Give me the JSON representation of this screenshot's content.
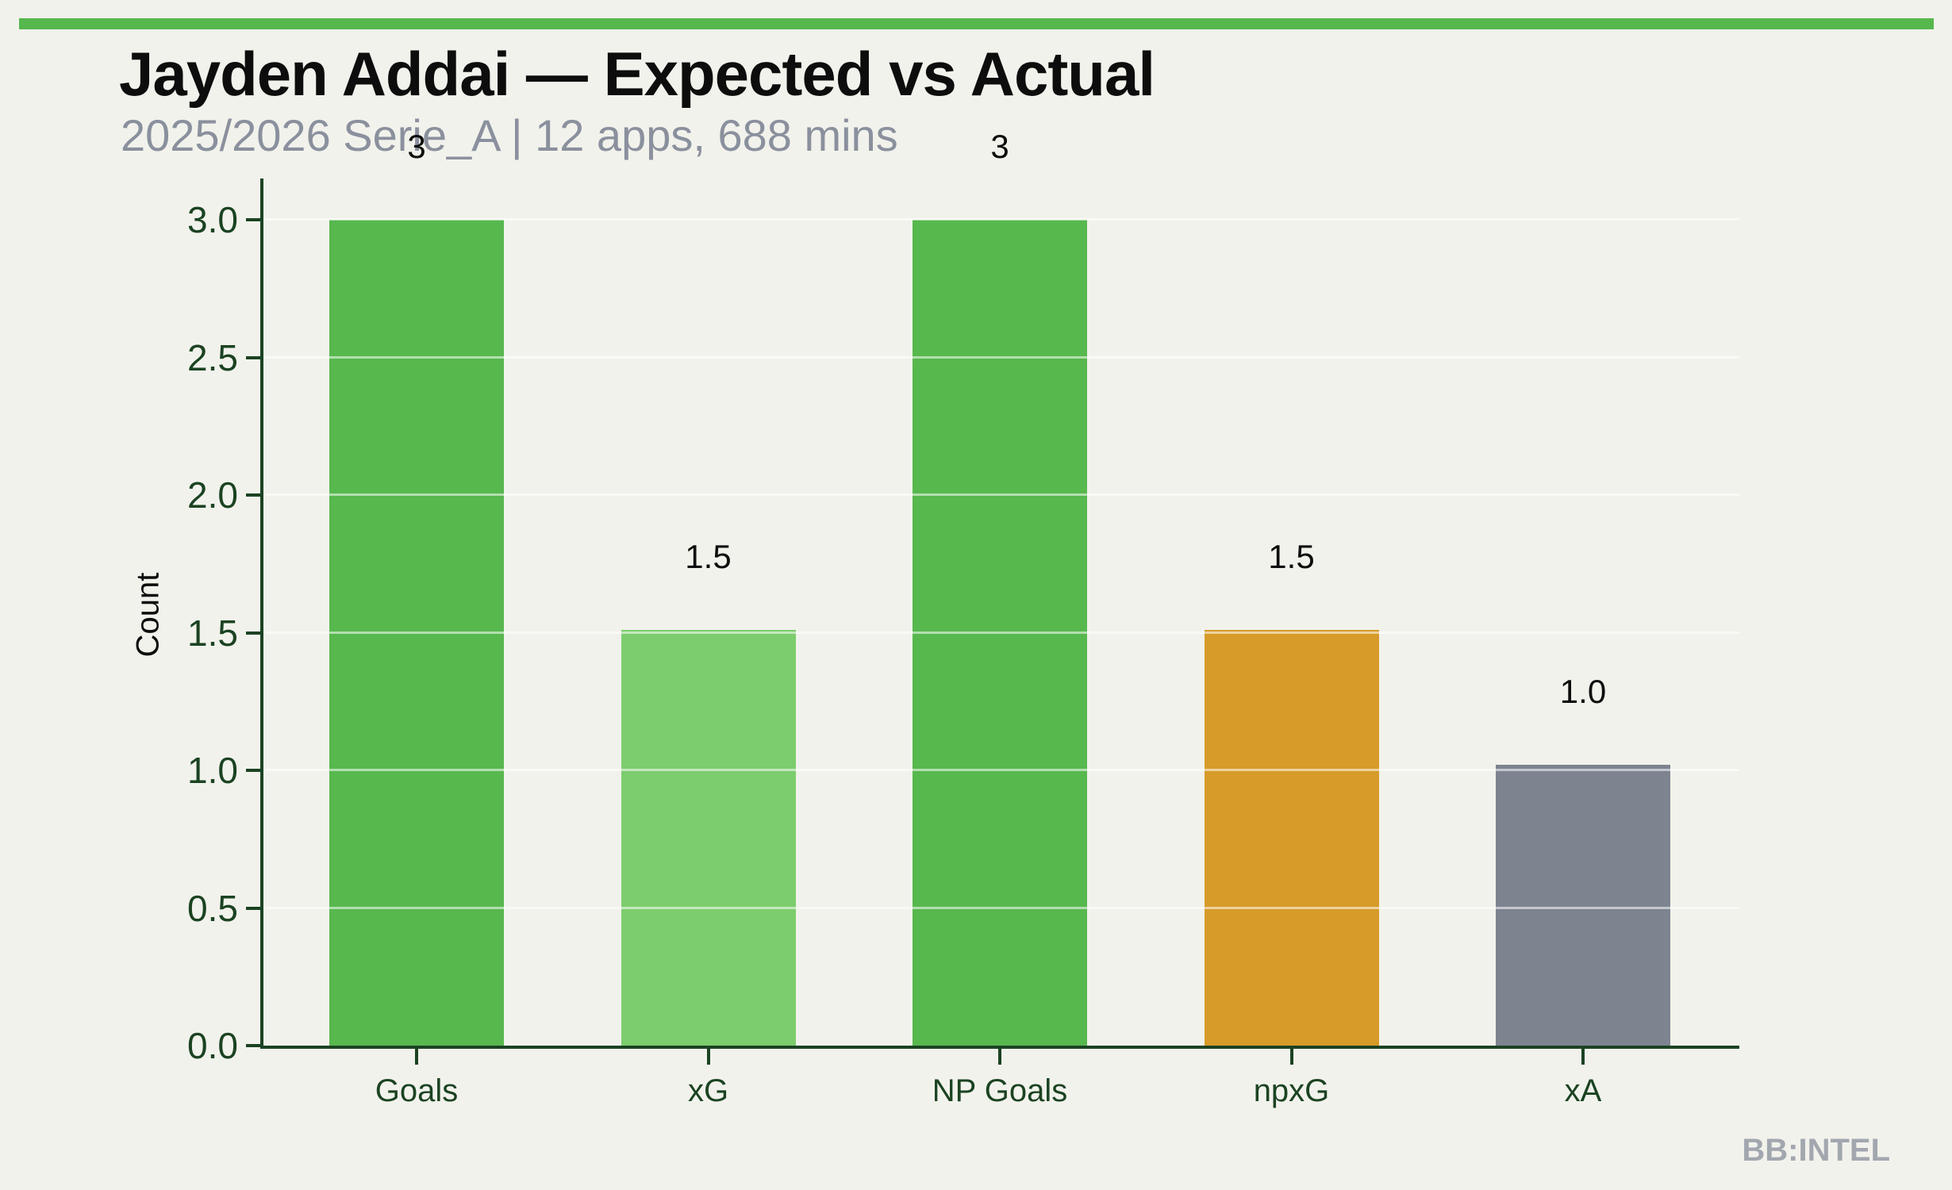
{
  "page": {
    "background": "#f2f2ec",
    "accent_bar_color": "#57b84e",
    "watermark": "BB:INTEL"
  },
  "chart_data": {
    "type": "bar",
    "title": "Jayden Addai — Expected vs Actual",
    "subtitle": "2025/2026 Serie_A | 12 apps, 688 mins",
    "ylabel": "Count",
    "xlabel": "",
    "categories": [
      "Goals",
      "xG",
      "NP Goals",
      "npxG",
      "xA"
    ],
    "values": [
      3,
      1.51,
      3,
      1.51,
      1.02
    ],
    "bar_labels": [
      "3",
      "1.5",
      "3",
      "1.5",
      "1.0"
    ],
    "bar_colors": [
      "#57b84e",
      "#7ccd6d",
      "#57b84e",
      "#d69b29",
      "#7d8490"
    ],
    "yticks": [
      "0.0",
      "0.5",
      "1.0",
      "1.5",
      "2.0",
      "2.5",
      "3.0"
    ],
    "ytick_values": [
      0,
      0.5,
      1,
      1.5,
      2,
      2.5,
      3
    ],
    "ylim": [
      0,
      3.15
    ],
    "grid": "horizontal-faint",
    "legend": "none",
    "axis_color": "#1b4322",
    "tick_label_color": "#1b4322",
    "value_label_color": "#0d0d0d",
    "subtitle_color": "#8a909d"
  }
}
